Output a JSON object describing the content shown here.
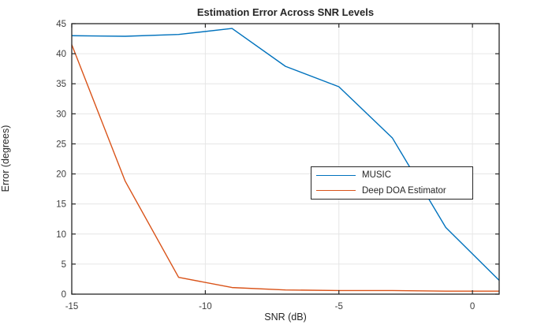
{
  "figure": {
    "background": "#ffffff"
  },
  "chart_data": {
    "type": "line",
    "title": "Estimation Error Across SNR Levels",
    "xlabel": "SNR (dB)",
    "ylabel": "Error (degrees)",
    "xlim": [
      -15,
      1
    ],
    "ylim": [
      0,
      45
    ],
    "xticks": [
      -15,
      -10,
      -5,
      0
    ],
    "yticks": [
      0,
      5,
      10,
      15,
      20,
      25,
      30,
      35,
      40,
      45
    ],
    "grid": true,
    "legend_position": "inside-middle-right",
    "x": [
      -15,
      -13,
      -11,
      -9,
      -7,
      -5,
      -3,
      -1,
      1
    ],
    "series": [
      {
        "name": "MUSIC",
        "color": "#0072BD",
        "values": [
          43.0,
          42.9,
          43.2,
          44.2,
          37.9,
          34.5,
          26.0,
          11.1,
          2.3
        ]
      },
      {
        "name": "Deep DOA Estimator",
        "color": "#D95319",
        "values": [
          41.5,
          18.8,
          2.8,
          1.1,
          0.7,
          0.6,
          0.6,
          0.5,
          0.5
        ]
      }
    ],
    "axis_color": "#262626",
    "grid_color": "#e6e6e6",
    "tick_label_color": "#3d3d3d"
  }
}
